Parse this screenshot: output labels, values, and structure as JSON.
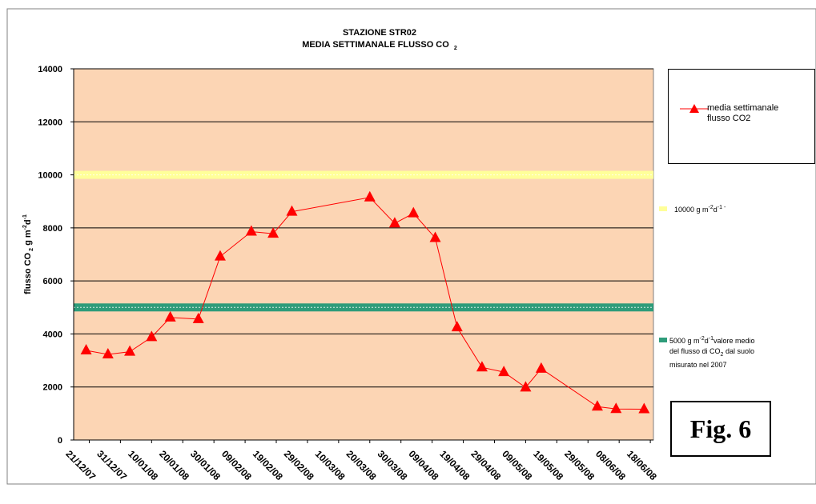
{
  "chart_data": {
    "type": "line",
    "title": "STAZIONE STR02",
    "subtitle": "MEDIA SETTIMANALE FLUSSO CO",
    "subtitle_sub": "2",
    "ylabel": "flusso CO",
    "ylabel_sub": "2",
    "ylabel_rest": " g m",
    "ylabel_sup1": "-2",
    "ylabel_d": "d",
    "ylabel_sup2": "-1",
    "ylim": [
      0,
      14000
    ],
    "yticks": [
      "0",
      "2000",
      "4000",
      "6000",
      "8000",
      "10000",
      "12000",
      "14000"
    ],
    "xlim": [
      "2007-12-16",
      "2008-06-19"
    ],
    "xtick_labels": [
      "21/12/07",
      "31/12/07",
      "10/01/08",
      "20/01/08",
      "30/01/08",
      "09/02/08",
      "19/02/08",
      "29/02/08",
      "10/03/08",
      "20/03/08",
      "30/03/08",
      "09/04/08",
      "19/04/08",
      "29/04/08",
      "09/05/08",
      "19/05/08",
      "29/05/08",
      "08/06/08",
      "18/06/08"
    ],
    "grid": true,
    "plot_background": "#fcd5b4",
    "series": [
      {
        "name": "media settimanale flusso CO2",
        "color": "#ff0000",
        "marker": "triangle",
        "points": [
          [
            "2007-12-20",
            3380
          ],
          [
            "2007-12-27",
            3230
          ],
          [
            "2008-01-03",
            3330
          ],
          [
            "2008-01-10",
            3880
          ],
          [
            "2008-01-16",
            4620
          ],
          [
            "2008-01-25",
            4560
          ],
          [
            "2008-02-01",
            6920
          ],
          [
            "2008-02-11",
            7860
          ],
          [
            "2008-02-18",
            7780
          ],
          [
            "2008-02-24",
            8610
          ],
          [
            "2008-03-20",
            9150
          ],
          [
            "2008-03-28",
            8170
          ],
          [
            "2008-04-03",
            8550
          ],
          [
            "2008-04-10",
            7620
          ],
          [
            "2008-04-17",
            4250
          ],
          [
            "2008-04-25",
            2740
          ],
          [
            "2008-05-02",
            2560
          ],
          [
            "2008-05-09",
            1980
          ],
          [
            "2008-05-14",
            2690
          ],
          [
            "2008-06-01",
            1260
          ],
          [
            "2008-06-07",
            1170
          ],
          [
            "2008-06-16",
            1160
          ]
        ]
      }
    ],
    "reference_lines": [
      {
        "value": 10000,
        "color": "#ffff99",
        "label": "10000 g m",
        "label_sup1": "-2",
        "label_d": "d",
        "label_sup2": "-1 -"
      },
      {
        "value": 5000,
        "color": "#2e9c7a",
        "label_a": "5000 g m",
        "label_sup1": "-2",
        "label_b": "d",
        "label_sup2": "-1",
        "label_c": "valore medio",
        "label_line2": "del flusso di CO",
        "label_sub": "2",
        "label_line2b": " dal suolo",
        "label_line3": "misurato nel 2007"
      }
    ],
    "legend": {
      "label_line1": "media settimanale",
      "label_line2": "flusso CO2",
      "placement": "right"
    }
  },
  "figure_label": "Fig. 6"
}
